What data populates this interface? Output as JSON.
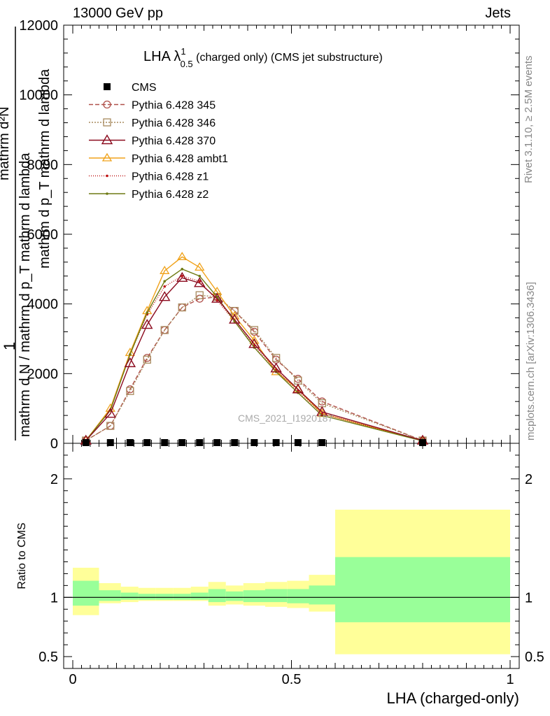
{
  "header": {
    "left": "13000 GeV pp",
    "right": "Jets"
  },
  "side_labels": {
    "rivet": "Rivet 3.1.10, ≥ 2.5M events",
    "mcplots": "mcplots.cern.ch [arXiv:1306.3436]"
  },
  "colors": {
    "cms": "#000000",
    "p345": "#b0504a",
    "p346": "#a88a5e",
    "p370": "#8b0a1e",
    "ambt1": "#f0a21a",
    "z1": "#c01818",
    "z2": "#6e7a14",
    "band_outer": "#ffff99",
    "band_inner": "#99ff99"
  },
  "chart_data": {
    "type": "line",
    "title": "LHA λ¹₀.₅ (charged only) (CMS jet substructure)",
    "title_main": "LHA λ",
    "title_sup": "1",
    "title_sub": "0.5",
    "title_rest": "(charged only) (CMS jet substructure)",
    "watermark": "CMS_2021_I1920187",
    "xlabel": "LHA (charged-only)",
    "ylabel_main": "mathrm d N / mathrm d p mathrm d p_T mathrm d lambda",
    "ylabel_main_display": [
      "1",
      "mathrm d N / mathrm d p_T mathrm d lambda"
    ],
    "ylabel_top": "mathrm d²N",
    "ylabel_top_2": "mathrm d p_T mathrm d lambda",
    "ylabel_ratio": "Ratio to CMS",
    "xlim": [
      0,
      1
    ],
    "ylim_main": [
      0,
      12000
    ],
    "ylim_ratio": [
      0.4,
      2.3
    ],
    "xticks": [
      0,
      0.5,
      1
    ],
    "xtick_labels": [
      "0",
      "0.5",
      "1"
    ],
    "yticks_main": [
      0,
      2000,
      4000,
      6000,
      8000,
      10000,
      12000
    ],
    "ytick_labels_main": [
      "0",
      "2000",
      "4000",
      "6000",
      "8000",
      "10000",
      "12000"
    ],
    "yticks_ratio": [
      0.5,
      1,
      2
    ],
    "ytick_labels_ratio": [
      "0.5",
      "1",
      "2"
    ],
    "legend_position": "top-left",
    "x": [
      0.03,
      0.086,
      0.131,
      0.17,
      0.21,
      0.25,
      0.29,
      0.33,
      0.37,
      0.415,
      0.465,
      0.515,
      0.57,
      0.8
    ],
    "series": [
      {
        "name": "CMS",
        "key": "cms",
        "marker": "square",
        "dash": "",
        "values": [
          0,
          0,
          0,
          0,
          0,
          0,
          0,
          0,
          0,
          0,
          0,
          0,
          0,
          0
        ]
      },
      {
        "name": "Pythia 6.428 345",
        "key": "p345",
        "marker": "circle",
        "dash": "6,3",
        "values": [
          80,
          500,
          1550,
          2450,
          3250,
          3900,
          4150,
          4200,
          3800,
          3200,
          2400,
          1850,
          1200,
          80
        ]
      },
      {
        "name": "Pythia 6.428 346",
        "key": "p346",
        "marker": "square-open",
        "dash": "2,2",
        "values": [
          80,
          500,
          1500,
          2400,
          3250,
          3900,
          4250,
          4200,
          3800,
          3250,
          2450,
          1800,
          1150,
          80
        ]
      },
      {
        "name": "Pythia 6.428 370",
        "key": "p370",
        "marker": "triangle",
        "dash": "",
        "values": [
          80,
          850,
          2300,
          3400,
          4200,
          4750,
          4600,
          4150,
          3550,
          2850,
          2150,
          1550,
          900,
          80
        ]
      },
      {
        "name": "Pythia 6.428 ambt1",
        "key": "ambt1",
        "marker": "triangle-open",
        "dash": "",
        "values": [
          80,
          1000,
          2600,
          3800,
          4950,
          5350,
          5050,
          4350,
          3650,
          2950,
          2050,
          1550,
          850,
          70
        ]
      },
      {
        "name": "Pythia 6.428 z1",
        "key": "z1",
        "marker": "dot",
        "dash": "1,2",
        "values": [
          80,
          950,
          2550,
          3700,
          4500,
          4800,
          4650,
          4100,
          3500,
          2800,
          2100,
          1500,
          850,
          70
        ]
      },
      {
        "name": "Pythia 6.428 z2",
        "key": "z2",
        "marker": "dot",
        "dash": "",
        "values": [
          80,
          950,
          2550,
          3750,
          4650,
          5000,
          4800,
          4200,
          3500,
          2750,
          2050,
          1450,
          800,
          70
        ]
      }
    ],
    "ratio_bands": [
      {
        "x0": 0.0,
        "x1": 0.06,
        "outer": [
          0.85,
          1.25
        ],
        "inner": [
          0.93,
          1.14
        ]
      },
      {
        "x0": 0.06,
        "x1": 0.11,
        "outer": [
          0.95,
          1.12
        ],
        "inner": [
          0.97,
          1.06
        ]
      },
      {
        "x0": 0.11,
        "x1": 0.15,
        "outer": [
          0.96,
          1.09
        ],
        "inner": [
          0.98,
          1.04
        ]
      },
      {
        "x0": 0.15,
        "x1": 0.19,
        "outer": [
          0.97,
          1.08
        ],
        "inner": [
          0.98,
          1.03
        ]
      },
      {
        "x0": 0.19,
        "x1": 0.23,
        "outer": [
          0.97,
          1.08
        ],
        "inner": [
          0.98,
          1.03
        ]
      },
      {
        "x0": 0.23,
        "x1": 0.27,
        "outer": [
          0.97,
          1.08
        ],
        "inner": [
          0.98,
          1.03
        ]
      },
      {
        "x0": 0.27,
        "x1": 0.31,
        "outer": [
          0.97,
          1.09
        ],
        "inner": [
          0.98,
          1.04
        ]
      },
      {
        "x0": 0.31,
        "x1": 0.35,
        "outer": [
          0.93,
          1.13
        ],
        "inner": [
          0.96,
          1.07
        ]
      },
      {
        "x0": 0.35,
        "x1": 0.39,
        "outer": [
          0.94,
          1.1
        ],
        "inner": [
          0.97,
          1.05
        ]
      },
      {
        "x0": 0.39,
        "x1": 0.44,
        "outer": [
          0.93,
          1.12
        ],
        "inner": [
          0.96,
          1.06
        ]
      },
      {
        "x0": 0.44,
        "x1": 0.49,
        "outer": [
          0.92,
          1.13
        ],
        "inner": [
          0.96,
          1.07
        ]
      },
      {
        "x0": 0.49,
        "x1": 0.54,
        "outer": [
          0.91,
          1.14
        ],
        "inner": [
          0.95,
          1.07
        ]
      },
      {
        "x0": 0.54,
        "x1": 0.6,
        "outer": [
          0.88,
          1.19
        ],
        "inner": [
          0.94,
          1.1
        ]
      },
      {
        "x0": 0.6,
        "x1": 1.0,
        "outer": [
          0.52,
          1.74
        ],
        "inner": [
          0.79,
          1.34
        ]
      }
    ]
  }
}
